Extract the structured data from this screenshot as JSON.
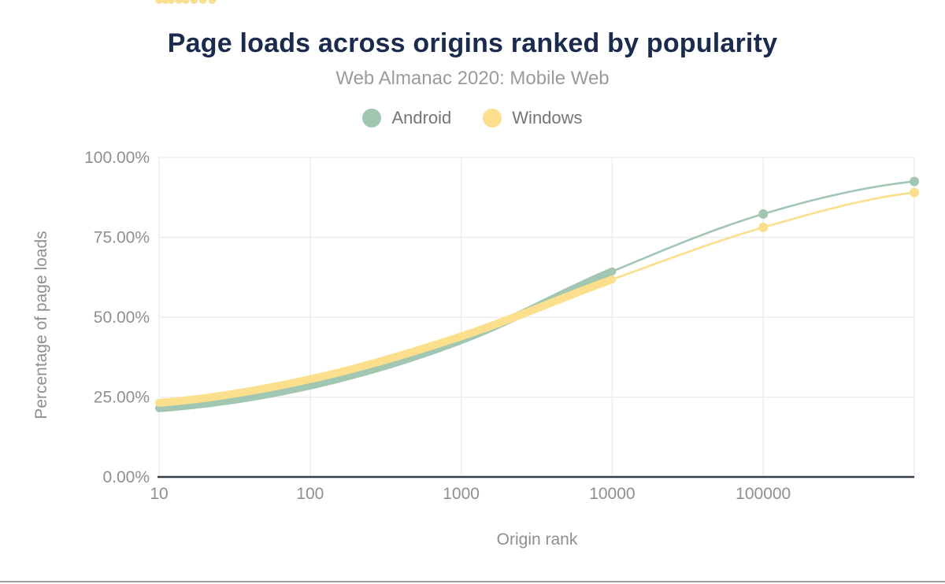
{
  "chart_data": {
    "type": "line",
    "title": "Page loads across origins ranked by popularity",
    "subtitle": "Web Almanac 2020: Mobile Web",
    "xlabel": "Origin rank",
    "ylabel": "Percentage of page loads",
    "x_scale": "log",
    "xlim": [
      10,
      1000000
    ],
    "ylim": [
      0,
      100
    ],
    "grid": true,
    "legend_position": "top",
    "x_ticks": [
      {
        "value": 10,
        "label": "10"
      },
      {
        "value": 100,
        "label": "100"
      },
      {
        "value": 1000,
        "label": "1000"
      },
      {
        "value": 10000,
        "label": "10000"
      },
      {
        "value": 100000,
        "label": "100000"
      }
    ],
    "y_ticks": [
      {
        "value": 100,
        "label": "100.00%"
      },
      {
        "value": 75,
        "label": "75.00%"
      },
      {
        "value": 50,
        "label": "50.00%"
      },
      {
        "value": 25,
        "label": "25.00%"
      },
      {
        "value": 0,
        "label": "0.00%"
      }
    ],
    "gridline_decades": [
      10,
      100,
      1000,
      10000,
      100000,
      1000000
    ],
    "dense_max_rank": 10000,
    "marker_ranks": [
      100000,
      1000000
    ],
    "series": [
      {
        "name": "Android",
        "color": "#a1c6b2",
        "x": [
          10,
          100,
          1000,
          10000,
          100000,
          1000000
        ],
        "y": [
          21.5,
          28.6,
          42.8,
          64.3,
          82.3,
          92.5
        ]
      },
      {
        "name": "Windows",
        "color": "#fbdf8d",
        "x": [
          10,
          100,
          1000,
          10000,
          100000,
          1000000
        ],
        "y": [
          23.2,
          30.6,
          44.0,
          61.8,
          78.1,
          89.0
        ]
      }
    ],
    "colors": {
      "title": "#1b2b4d",
      "subtitle": "#9b9b9b",
      "axis_text": "#8d9093",
      "gridline": "#ededed",
      "axis_line": "#37404a",
      "bottom_rule": "#9e9e9e"
    }
  }
}
